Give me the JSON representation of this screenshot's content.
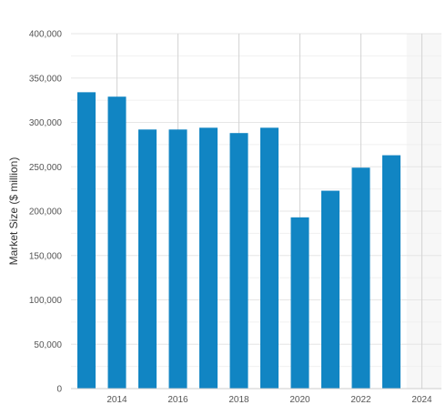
{
  "chart_data": {
    "type": "bar",
    "xlabel": "",
    "ylabel": "Market Size ($ million)",
    "ylim": [
      0,
      400000
    ],
    "y_ticks": [
      "0",
      "50,000",
      "100,000",
      "150,000",
      "200,000",
      "250,000",
      "300,000",
      "350,000",
      "400,000"
    ],
    "x_ticks": [
      "2014",
      "2016",
      "2018",
      "2020",
      "2022",
      "2024"
    ],
    "categories": [
      "2013",
      "2014",
      "2015",
      "2016",
      "2017",
      "2018",
      "2019",
      "2020",
      "2021",
      "2022",
      "2023",
      "2024"
    ],
    "values": [
      334000,
      329000,
      292000,
      292000,
      294000,
      288000,
      294000,
      193000,
      223000,
      249000,
      263000,
      null
    ],
    "bar_color": "#1185c3",
    "forecast_shade_color": "#f7f7f7",
    "grid": true,
    "legend": "none"
  }
}
